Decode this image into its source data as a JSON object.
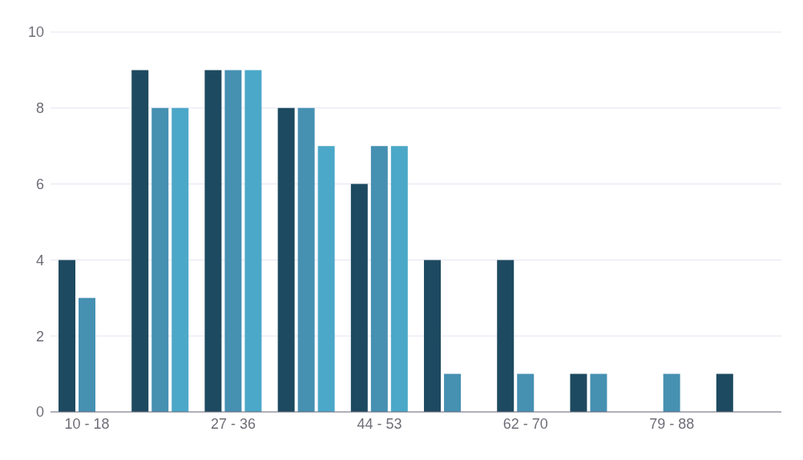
{
  "chart_data": {
    "type": "bar",
    "categories": [
      "10 - 18",
      null,
      "27 - 36",
      null,
      "44 - 53",
      null,
      "62 - 70",
      null,
      "79 - 88",
      null
    ],
    "series": [
      {
        "color": "#1d4a60",
        "values": [
          4,
          9,
          9,
          8,
          6,
          4,
          4,
          1,
          0,
          1
        ]
      },
      {
        "color": "#4690b2",
        "values": [
          3,
          8,
          9,
          8,
          7,
          1,
          1,
          1,
          1,
          0
        ]
      },
      {
        "color": "#4ca8c8",
        "values": [
          0,
          8,
          9,
          7,
          7,
          0,
          0,
          0,
          0,
          0
        ]
      }
    ],
    "ylim": [
      0,
      10
    ],
    "yticks": [
      0,
      2,
      4,
      6,
      8,
      10
    ],
    "grid": "y",
    "legend": false
  }
}
